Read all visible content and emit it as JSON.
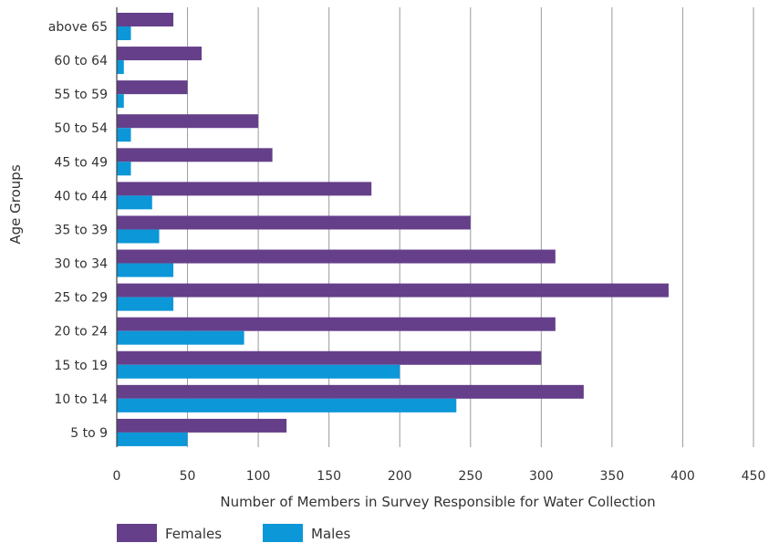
{
  "chart_data": {
    "type": "bar",
    "orientation": "horizontal",
    "xlabel": "Number of Members in Survey Responsible for Water Collection",
    "ylabel": "Age Groups",
    "xlim": [
      0,
      450
    ],
    "xticks": [
      0,
      50,
      100,
      150,
      200,
      250,
      300,
      350,
      400,
      450
    ],
    "xtick_labels": [
      "0",
      "50",
      "100",
      "150",
      "200",
      "250",
      "300",
      "350",
      "400",
      "450"
    ],
    "grid": "vertical",
    "legend_position": "bottom-left",
    "categories": [
      "above 65",
      "60 to 64",
      "55 to 59",
      "50 to 54",
      "45 to 49",
      "40 to 44",
      "35 to 39",
      "30 to 34",
      "25 to 29",
      "20 to 24",
      "15 to 19",
      "10 to 14",
      "5 to 9"
    ],
    "series": [
      {
        "name": "Females",
        "color": "#653f8a",
        "values": [
          40,
          60,
          50,
          100,
          110,
          180,
          250,
          310,
          390,
          310,
          300,
          330,
          120
        ]
      },
      {
        "name": "Males",
        "color": "#0c97d8",
        "values": [
          10,
          5,
          5,
          10,
          10,
          25,
          30,
          40,
          40,
          90,
          200,
          240,
          50
        ]
      }
    ]
  }
}
